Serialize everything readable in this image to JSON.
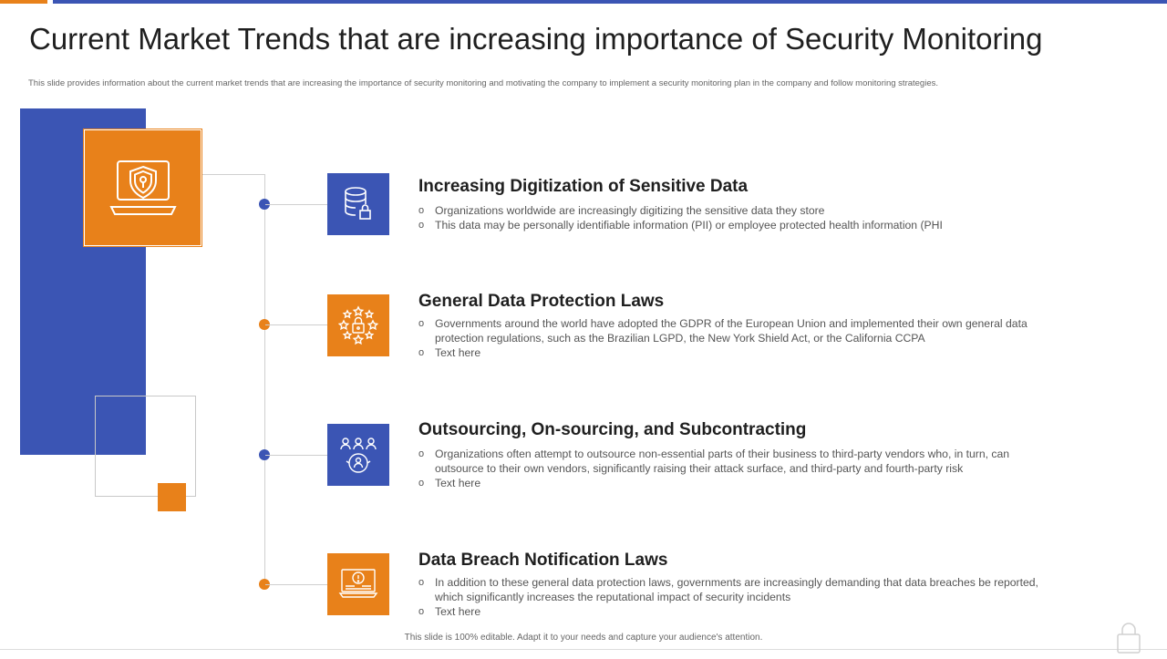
{
  "title": "Current Market Trends that are increasing importance of Security Monitoring",
  "subtitle": "This slide provides information about the current market trends that are increasing the importance of security monitoring and motivating the company to implement  a security monitoring plan in the company and follow monitoring strategies.",
  "items": [
    {
      "title": "Increasing Digitization of Sensitive Data",
      "icon": "database-lock-icon",
      "bullets": [
        "Organizations worldwide  are increasingly digitizing the sensitive data they store",
        "This data may be personally identifiable information  (PII)  or employee protected health information (PHI"
      ]
    },
    {
      "title": "General Data Protection Laws",
      "icon": "eu-stars-lock-icon",
      "bullets": [
        "Governments  around  the world  have  adopted  the GDPR of the European  Union and implemented  their own general data protection regulations,  such as the Brazilian LGPD,  the New York Shield Act,  or the California  CCPA",
        "Text here"
      ]
    },
    {
      "title": "Outsourcing, On-sourcing, and Subcontracting",
      "icon": "people-network-icon",
      "bullets": [
        "Organizations  often  attempt to outsource  non-essential  parts of their business to third-party  vendors  who,  in turn,  can outsource  to their own vendors,  significantly  raising their attack surface,  and third-party  and fourth-party  risk",
        "Text here"
      ]
    },
    {
      "title": "Data Breach Notification Laws",
      "icon": "alert-monitor-icon",
      "bullets": [
        "In  addition  to these  general  data  protection  laws,  governments   are  increasingly  demanding  that data breaches  be reported,  which  significantly  increases the reputational  impact of security incidents",
        "Text here"
      ]
    }
  ],
  "footer": "This slide is 100% editable.  Adapt it to your needs and capture your audience's attention.",
  "colors": {
    "blue": "#3B55B4",
    "orange": "#E8811A"
  }
}
